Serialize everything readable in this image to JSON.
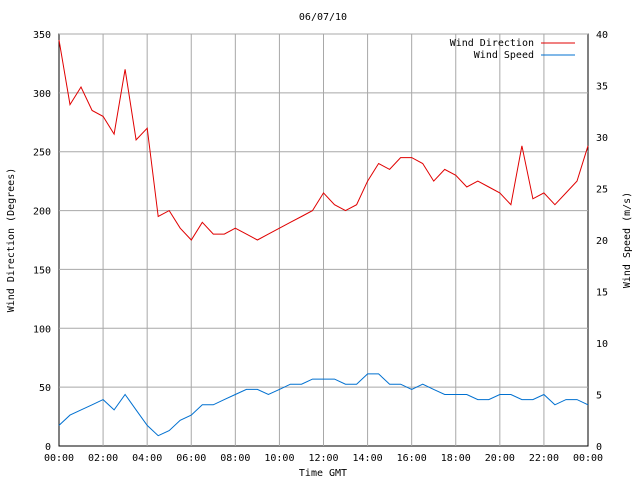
{
  "chart_data": {
    "type": "line",
    "title": "06/07/10",
    "xlabel": "Time GMT",
    "ylabel_left": "Wind Direction (Degrees)",
    "ylabel_right": "Wind Speed (m/s)",
    "x_ticks": [
      "00:00",
      "02:00",
      "04:00",
      "06:00",
      "08:00",
      "10:00",
      "12:00",
      "14:00",
      "16:00",
      "18:00",
      "20:00",
      "22:00",
      "00:00"
    ],
    "xlim_hours": [
      0,
      24
    ],
    "ylim_left": [
      0,
      350
    ],
    "y_ticks_left": [
      "0",
      "50",
      "100",
      "150",
      "200",
      "250",
      "300",
      "350"
    ],
    "ylim_right": [
      0,
      40
    ],
    "y_ticks_right": [
      "0",
      "5",
      "10",
      "15",
      "20",
      "25",
      "30",
      "35",
      "40"
    ],
    "grid": true,
    "legend_position": "top-right",
    "series": [
      {
        "name": "Wind Direction",
        "axis": "left",
        "color": "#e00000",
        "x_hours": [
          0,
          0.5,
          1,
          1.5,
          2,
          2.5,
          3,
          3.5,
          4,
          4.5,
          5,
          5.5,
          6,
          6.5,
          7,
          7.5,
          8,
          8.5,
          9,
          9.5,
          10,
          10.5,
          11,
          11.5,
          12,
          12.5,
          13,
          13.5,
          14,
          14.5,
          15,
          15.5,
          16,
          16.5,
          17,
          17.5,
          18,
          18.5,
          19,
          19.5,
          20,
          20.5,
          21,
          21.5,
          22,
          22.5,
          23,
          23.5,
          24
        ],
        "values": [
          345,
          290,
          305,
          285,
          280,
          265,
          320,
          260,
          270,
          195,
          200,
          185,
          175,
          190,
          180,
          180,
          185,
          180,
          175,
          180,
          185,
          190,
          195,
          200,
          215,
          205,
          200,
          205,
          225,
          240,
          235,
          245,
          245,
          240,
          225,
          235,
          230,
          220,
          225,
          220,
          215,
          205,
          255,
          210,
          215,
          205,
          215,
          225,
          255
        ]
      },
      {
        "name": "Wind Speed",
        "axis": "right",
        "color": "#0070d0",
        "x_hours": [
          0,
          0.5,
          1,
          1.5,
          2,
          2.5,
          3,
          3.5,
          4,
          4.5,
          5,
          5.5,
          6,
          6.5,
          7,
          7.5,
          8,
          8.5,
          9,
          9.5,
          10,
          10.5,
          11,
          11.5,
          12,
          12.5,
          13,
          13.5,
          14,
          14.5,
          15,
          15.5,
          16,
          16.5,
          17,
          17.5,
          18,
          18.5,
          19,
          19.5,
          20,
          20.5,
          21,
          21.5,
          22,
          22.5,
          23,
          23.5,
          24
        ],
        "values": [
          2,
          3,
          3.5,
          4,
          4.5,
          3.5,
          5,
          3.5,
          2,
          1,
          1.5,
          2.5,
          3,
          4,
          4,
          4.5,
          5,
          5.5,
          5.5,
          5,
          5.5,
          6,
          6,
          6.5,
          6.5,
          6.5,
          6,
          6,
          7,
          7,
          6,
          6,
          5.5,
          6,
          5.5,
          5,
          5,
          5,
          4.5,
          4.5,
          5,
          5,
          4.5,
          4.5,
          5,
          4,
          4.5,
          4.5,
          4
        ]
      }
    ]
  }
}
